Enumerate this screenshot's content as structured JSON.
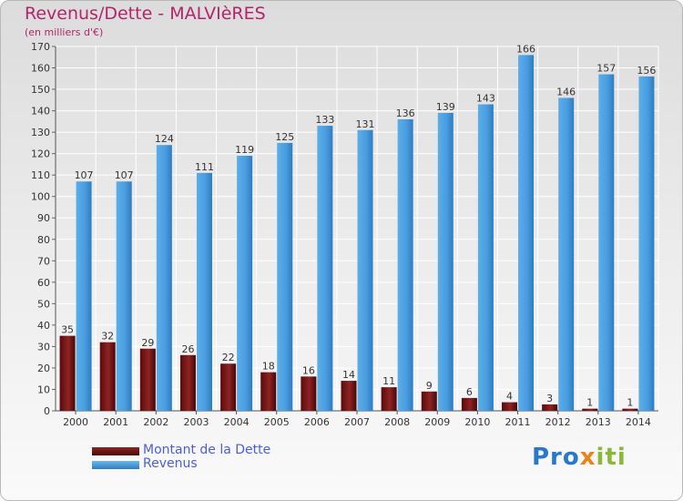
{
  "title": "Revenus/Dette - MALVIèRES",
  "subtitle": "(en milliers d'€)",
  "logo": {
    "part1": "Pro",
    "part2": "x",
    "part3": "iti"
  },
  "legend": [
    {
      "label": "Montant de la Dette",
      "color": "#6b0f0f"
    },
    {
      "label": "Revenus",
      "color": "#4a9ee0"
    }
  ],
  "chart_data": {
    "type": "bar",
    "title": "Revenus/Dette - MALVIèRES",
    "ylabel": "(en milliers d'€)",
    "xlabel": "",
    "categories": [
      "2000",
      "2001",
      "2002",
      "2003",
      "2004",
      "2005",
      "2006",
      "2007",
      "2008",
      "2009",
      "2010",
      "2011",
      "2012",
      "2013",
      "2014"
    ],
    "series": [
      {
        "name": "Montant de la Dette",
        "color": "#6b0f0f",
        "values": [
          35,
          32,
          29,
          26,
          22,
          18,
          16,
          14,
          11,
          9,
          6,
          4,
          3,
          1,
          1
        ]
      },
      {
        "name": "Revenus",
        "color": "#4a9ee0",
        "values": [
          107,
          107,
          124,
          111,
          119,
          125,
          133,
          131,
          136,
          139,
          143,
          166,
          146,
          157,
          156
        ]
      }
    ],
    "ylim": [
      0,
      170
    ],
    "yticks": [
      0,
      10,
      20,
      30,
      40,
      50,
      60,
      70,
      80,
      90,
      100,
      110,
      120,
      130,
      140,
      150,
      160,
      170
    ],
    "grid": true,
    "data_labels": true
  }
}
